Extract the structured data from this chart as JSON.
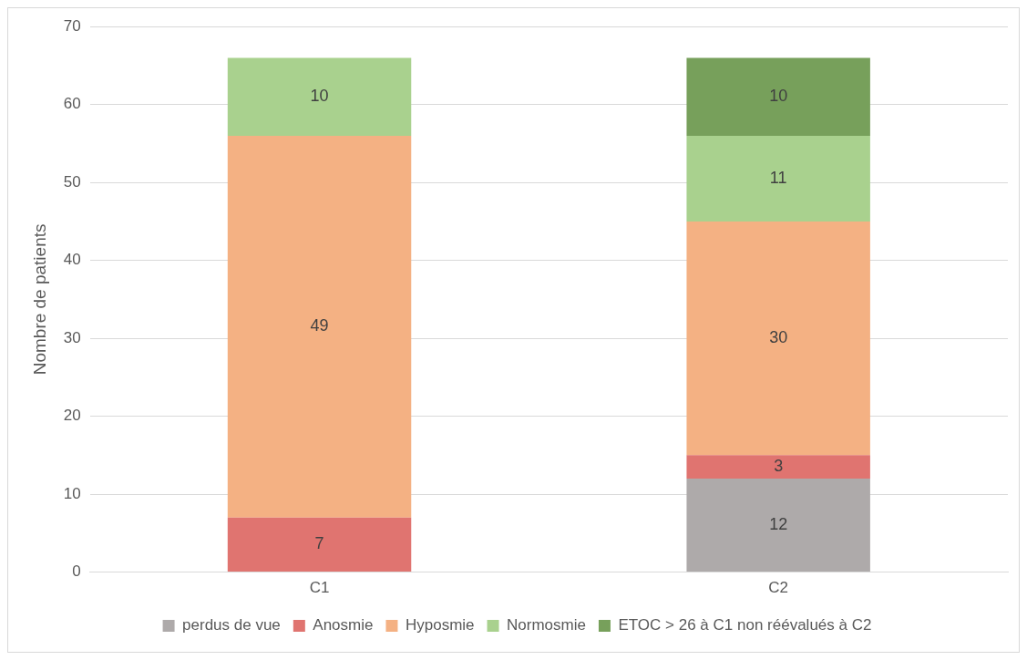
{
  "chart_data": {
    "type": "bar",
    "stacked": true,
    "ylabel": "Nombre de patients",
    "categories": [
      "C1",
      "C2"
    ],
    "series": [
      {
        "name": "perdus de vue",
        "color": "#aeaaaa",
        "values": [
          null,
          12
        ]
      },
      {
        "name": "Anosmie",
        "color": "#e07470",
        "values": [
          7,
          3
        ]
      },
      {
        "name": "Hyposmie",
        "color": "#f4b183",
        "values": [
          49,
          30
        ]
      },
      {
        "name": "Normosmie",
        "color": "#a9d18e",
        "values": [
          10,
          11
        ]
      },
      {
        "name": "ETOC > 26 à C1 non réévalués à C2",
        "color": "#77a05b",
        "values": [
          null,
          10
        ]
      }
    ],
    "ylim": [
      0,
      70
    ],
    "yticks": [
      0,
      10,
      20,
      30,
      40,
      50,
      60,
      70
    ],
    "grid": "y",
    "legend": "bottom",
    "data_labels": true
  }
}
